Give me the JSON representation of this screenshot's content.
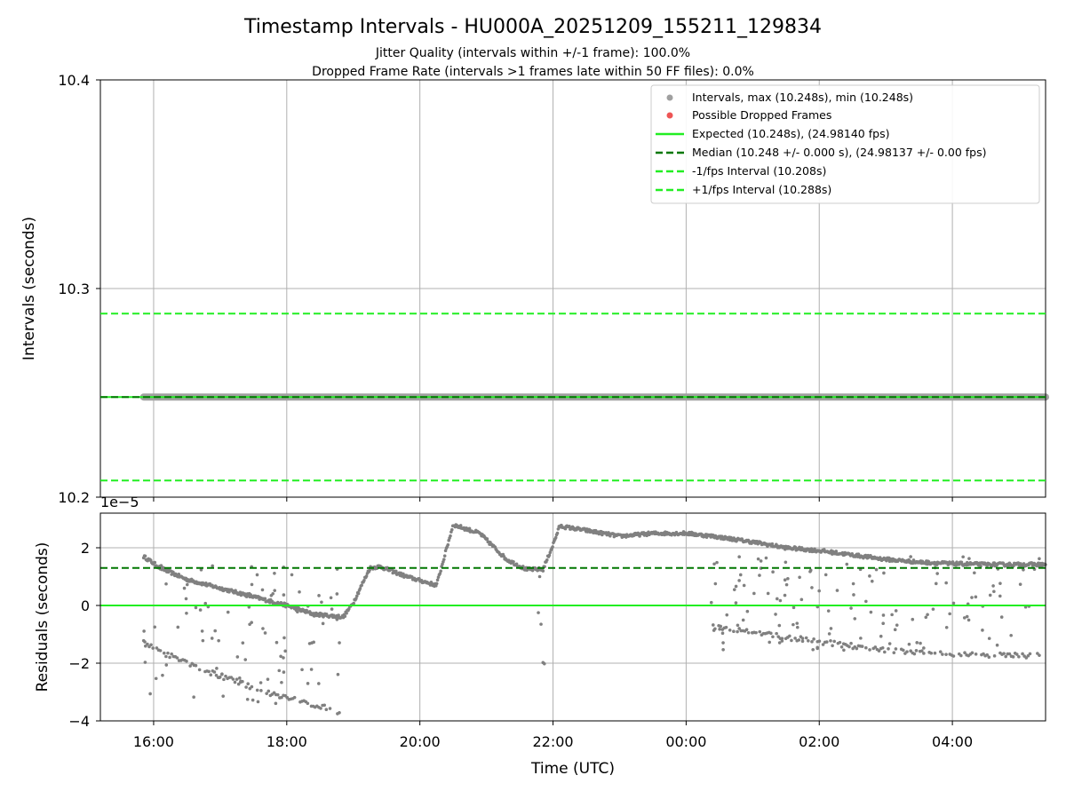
{
  "colors": {
    "interval_marker": "#808080",
    "dropped_marker": "#ee5555",
    "expected": "#22ee22",
    "median": "#007700",
    "bound": "#22ee22",
    "grid": "#b0b0b0"
  },
  "chart_data": [
    {
      "type": "scatter",
      "title": "Timestamp Intervals - HU000A_20251209_155211_129834",
      "subtitle_lines": [
        "Jitter Quality (intervals within +/-1 frame): 100.0%",
        "Dropped Frame Rate (intervals >1 frames late within 50 FF files): 0.0%"
      ],
      "ylabel": "Intervals (seconds)",
      "xlabel": "",
      "xlim_hours": [
        15.2,
        29.4
      ],
      "ylim": [
        10.2,
        10.4
      ],
      "yticks": [
        {
          "value": 10.2,
          "label": "10.2"
        },
        {
          "value": 10.3,
          "label": "10.3"
        },
        {
          "value": 10.4,
          "label": "10.4"
        }
      ],
      "hlines": [
        {
          "name": "expected",
          "value": 10.248,
          "style": "solid"
        },
        {
          "name": "median",
          "value": 10.248,
          "style": "dashed"
        },
        {
          "name": "minus",
          "value": 10.208,
          "style": "dashed"
        },
        {
          "name": "plus",
          "value": 10.288,
          "style": "dashed"
        }
      ],
      "interval_series": {
        "value": 10.248,
        "start_hour": 15.85,
        "end_hour": 29.4
      },
      "dropped_frames": [],
      "legend": [
        {
          "key": "intervals",
          "marker": "dot",
          "label": "Intervals, max (10.248s), min (10.248s)"
        },
        {
          "key": "dropped",
          "marker": "dot",
          "label": "Possible Dropped Frames"
        },
        {
          "key": "expected",
          "marker": "solid",
          "label": "Expected (10.248s), (24.98140 fps)"
        },
        {
          "key": "median",
          "marker": "dashed",
          "label": "Median (10.248 +/- 0.000 s), (24.98137 +/- 0.00 fps)"
        },
        {
          "key": "minus",
          "marker": "dashed",
          "label": "-1/fps Interval (10.208s)"
        },
        {
          "key": "plus",
          "marker": "dashed",
          "label": "+1/fps Interval (10.288s)"
        }
      ]
    },
    {
      "type": "scatter",
      "title": "",
      "ylabel": "Residuals (seconds)",
      "xlabel": "Time (UTC)",
      "scale_label": "1e−5",
      "xlim_hours": [
        15.2,
        29.4
      ],
      "ylim": [
        -4.0,
        3.2
      ],
      "yticks": [
        {
          "value": 2,
          "label": "2"
        },
        {
          "value": 0,
          "label": "0"
        },
        {
          "value": -2,
          "label": "−2"
        },
        {
          "value": -4,
          "label": "−4"
        }
      ],
      "xticks": [
        {
          "value": 16,
          "label": "16:00"
        },
        {
          "value": 18,
          "label": "18:00"
        },
        {
          "value": 20,
          "label": "20:00"
        },
        {
          "value": 22,
          "label": "22:00"
        },
        {
          "value": 24,
          "label": "00:00"
        },
        {
          "value": 26,
          "label": "02:00"
        },
        {
          "value": 28,
          "label": "04:00"
        }
      ],
      "hlines": [
        {
          "name": "zero",
          "value": 0,
          "style": "solid"
        },
        {
          "name": "median",
          "value": 1.3,
          "style": "dashed"
        }
      ],
      "main_trend": [
        [
          15.85,
          1.7
        ],
        [
          16.1,
          1.3
        ],
        [
          16.5,
          0.9
        ],
        [
          17.0,
          0.6
        ],
        [
          17.5,
          0.3
        ],
        [
          18.0,
          0.0
        ],
        [
          18.4,
          -0.3
        ],
        [
          18.85,
          -0.4
        ],
        [
          19.0,
          0.1
        ],
        [
          19.25,
          1.3
        ],
        [
          19.4,
          1.35
        ],
        [
          19.8,
          1.0
        ],
        [
          20.25,
          0.7
        ],
        [
          20.5,
          2.8
        ],
        [
          20.9,
          2.5
        ],
        [
          21.3,
          1.6
        ],
        [
          21.6,
          1.25
        ],
        [
          21.85,
          1.25
        ],
        [
          22.0,
          2.1
        ],
        [
          22.1,
          2.75
        ],
        [
          22.5,
          2.6
        ],
        [
          23.0,
          2.4
        ],
        [
          23.5,
          2.5
        ],
        [
          24.0,
          2.5
        ],
        [
          24.4,
          2.4
        ],
        [
          25.0,
          2.2
        ],
        [
          25.5,
          2.0
        ],
        [
          26.0,
          1.9
        ],
        [
          26.5,
          1.75
        ],
        [
          27.0,
          1.6
        ],
        [
          27.5,
          1.5
        ],
        [
          28.0,
          1.45
        ],
        [
          28.5,
          1.42
        ],
        [
          29.4,
          1.42
        ]
      ],
      "lower_trends": [
        [
          [
            15.85,
            -1.3
          ],
          [
            16.2,
            -1.7
          ],
          [
            16.7,
            -2.2
          ],
          [
            17.2,
            -2.6
          ],
          [
            17.7,
            -3.0
          ],
          [
            18.2,
            -3.3
          ],
          [
            18.8,
            -3.7
          ]
        ],
        [
          [
            24.35,
            -0.7
          ],
          [
            25.0,
            -0.9
          ],
          [
            25.5,
            -1.1
          ],
          [
            26.0,
            -1.25
          ],
          [
            26.5,
            -1.4
          ],
          [
            27.0,
            -1.55
          ],
          [
            27.5,
            -1.65
          ],
          [
            28.0,
            -1.7
          ],
          [
            29.4,
            -1.75
          ]
        ]
      ],
      "outlier_regions": [
        {
          "hours": [
            15.85,
            18.85
          ],
          "residual_range": [
            -3.5,
            1.4
          ],
          "count": 90
        },
        {
          "hours": [
            24.35,
            29.4
          ],
          "residual_range": [
            -1.6,
            1.7
          ],
          "count": 130
        }
      ],
      "isolated_points": [
        [
          21.85,
          -1.98
        ],
        [
          21.87,
          -2.02
        ],
        [
          21.82,
          -0.65
        ],
        [
          21.78,
          -0.25
        ],
        [
          21.8,
          1.0
        ]
      ]
    }
  ]
}
